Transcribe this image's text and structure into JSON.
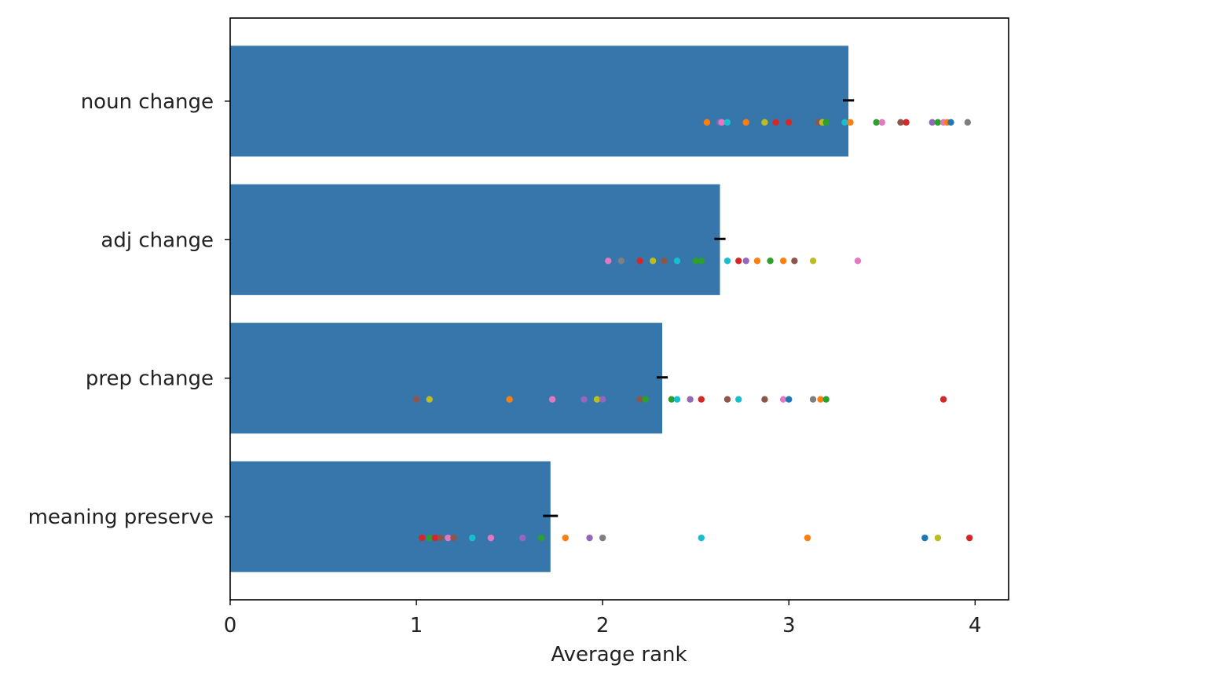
{
  "chart_data": {
    "type": "bar",
    "orientation": "horizontal",
    "title": "",
    "xlabel": "Average rank",
    "ylabel": "",
    "xlim": [
      0,
      4.18
    ],
    "xticks": [
      0,
      1,
      2,
      3,
      4
    ],
    "xtick_labels": [
      "0",
      "1",
      "2",
      "3",
      "4"
    ],
    "grid": false,
    "legend": "none",
    "bar_color": "#3776ab",
    "errorbar_color": "#000000",
    "categories": [
      "noun change",
      "adj change",
      "prep change",
      "meaning preserve"
    ],
    "values": [
      3.32,
      2.63,
      2.32,
      1.72
    ],
    "error": [
      0.03,
      0.03,
      0.03,
      0.04
    ],
    "point_colors": [
      "#1f77b4",
      "#ff7f0e",
      "#2ca02c",
      "#d62728",
      "#9467bd",
      "#8c564b",
      "#e377c2",
      "#7f7f7f",
      "#bcbd22",
      "#17becf"
    ],
    "points": [
      [
        {
          "x": 2.56,
          "c": 1
        },
        {
          "x": 2.63,
          "c": 4
        },
        {
          "x": 2.64,
          "c": 6
        },
        {
          "x": 2.67,
          "c": 9
        },
        {
          "x": 2.77,
          "c": 1
        },
        {
          "x": 2.87,
          "c": 8
        },
        {
          "x": 2.93,
          "c": 3
        },
        {
          "x": 3.0,
          "c": 3
        },
        {
          "x": 3.16,
          "c": 5
        },
        {
          "x": 3.18,
          "c": 8
        },
        {
          "x": 3.2,
          "c": 2
        },
        {
          "x": 3.3,
          "c": 9
        },
        {
          "x": 3.33,
          "c": 1
        },
        {
          "x": 3.47,
          "c": 2
        },
        {
          "x": 3.5,
          "c": 6
        },
        {
          "x": 3.6,
          "c": 5
        },
        {
          "x": 3.63,
          "c": 3
        },
        {
          "x": 3.77,
          "c": 4
        },
        {
          "x": 3.8,
          "c": 2
        },
        {
          "x": 3.83,
          "c": 6
        },
        {
          "x": 3.85,
          "c": 1
        },
        {
          "x": 3.87,
          "c": 0
        },
        {
          "x": 3.96,
          "c": 7
        }
      ],
      [
        {
          "x": 2.03,
          "c": 6
        },
        {
          "x": 2.1,
          "c": 7
        },
        {
          "x": 2.2,
          "c": 3
        },
        {
          "x": 2.27,
          "c": 8
        },
        {
          "x": 2.33,
          "c": 5
        },
        {
          "x": 2.4,
          "c": 9
        },
        {
          "x": 2.5,
          "c": 2
        },
        {
          "x": 2.53,
          "c": 2
        },
        {
          "x": 2.67,
          "c": 9
        },
        {
          "x": 2.73,
          "c": 3
        },
        {
          "x": 2.77,
          "c": 4
        },
        {
          "x": 2.83,
          "c": 1
        },
        {
          "x": 2.9,
          "c": 2
        },
        {
          "x": 2.97,
          "c": 1
        },
        {
          "x": 3.03,
          "c": 5
        },
        {
          "x": 3.13,
          "c": 8
        },
        {
          "x": 3.37,
          "c": 6
        }
      ],
      [
        {
          "x": 1.0,
          "c": 5
        },
        {
          "x": 1.07,
          "c": 8
        },
        {
          "x": 1.5,
          "c": 1
        },
        {
          "x": 1.73,
          "c": 6
        },
        {
          "x": 1.9,
          "c": 4
        },
        {
          "x": 1.97,
          "c": 8
        },
        {
          "x": 2.0,
          "c": 4
        },
        {
          "x": 2.2,
          "c": 5
        },
        {
          "x": 2.23,
          "c": 2
        },
        {
          "x": 2.37,
          "c": 2
        },
        {
          "x": 2.4,
          "c": 9
        },
        {
          "x": 2.47,
          "c": 4
        },
        {
          "x": 2.53,
          "c": 3
        },
        {
          "x": 2.67,
          "c": 5
        },
        {
          "x": 2.73,
          "c": 9
        },
        {
          "x": 2.87,
          "c": 5
        },
        {
          "x": 2.97,
          "c": 6
        },
        {
          "x": 3.0,
          "c": 0
        },
        {
          "x": 3.13,
          "c": 7
        },
        {
          "x": 3.17,
          "c": 1
        },
        {
          "x": 3.2,
          "c": 2
        },
        {
          "x": 3.83,
          "c": 3
        }
      ],
      [
        {
          "x": 1.03,
          "c": 3
        },
        {
          "x": 1.07,
          "c": 2
        },
        {
          "x": 1.1,
          "c": 3
        },
        {
          "x": 1.13,
          "c": 5
        },
        {
          "x": 1.17,
          "c": 6
        },
        {
          "x": 1.2,
          "c": 5
        },
        {
          "x": 1.3,
          "c": 9
        },
        {
          "x": 1.4,
          "c": 6
        },
        {
          "x": 1.57,
          "c": 4
        },
        {
          "x": 1.67,
          "c": 2
        },
        {
          "x": 1.8,
          "c": 1
        },
        {
          "x": 1.93,
          "c": 4
        },
        {
          "x": 2.0,
          "c": 7
        },
        {
          "x": 2.53,
          "c": 9
        },
        {
          "x": 3.1,
          "c": 1
        },
        {
          "x": 3.73,
          "c": 0
        },
        {
          "x": 3.8,
          "c": 8
        },
        {
          "x": 3.97,
          "c": 3
        }
      ]
    ]
  }
}
